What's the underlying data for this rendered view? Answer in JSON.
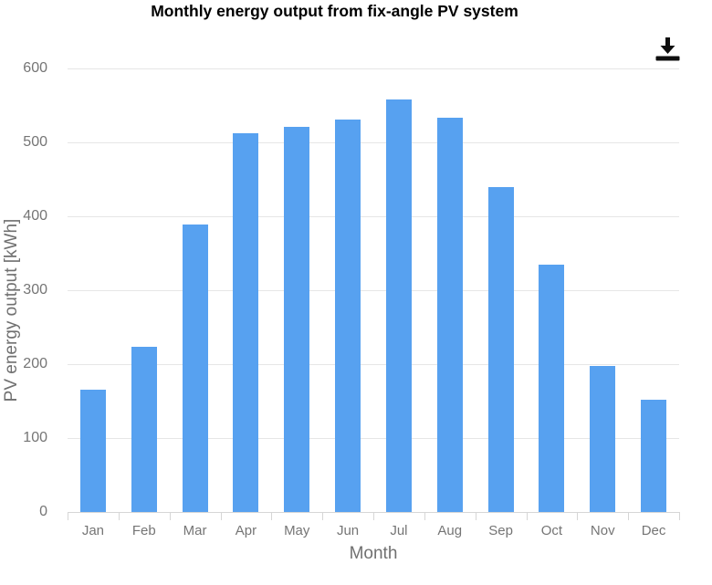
{
  "chart_data": {
    "type": "bar",
    "title": "Monthly energy output from fix-angle PV system",
    "categories": [
      "Jan",
      "Feb",
      "Mar",
      "Apr",
      "May",
      "Jun",
      "Jul",
      "Aug",
      "Sep",
      "Oct",
      "Nov",
      "Dec"
    ],
    "values": [
      165,
      224,
      389,
      512,
      521,
      531,
      558,
      533,
      440,
      334,
      197,
      152
    ],
    "xlabel": "Month",
    "ylabel": "PV energy output [kWh]",
    "ylim": [
      0,
      600
    ],
    "ytick_step": 100,
    "ytick_labels": [
      "0",
      "100",
      "200",
      "300",
      "400",
      "500",
      "600"
    ],
    "grid": true,
    "legend": "none",
    "colors": {
      "bar": "#57a1f0",
      "grid": "#e6e6e6",
      "axis": "#d6d6d6",
      "tick_label": "#757575",
      "axis_title": "#707070",
      "title": "#000000",
      "icon": "#0f0f0f",
      "background": "#ffffff"
    }
  },
  "toolbar": {
    "download": {
      "icon": "download-icon"
    }
  }
}
